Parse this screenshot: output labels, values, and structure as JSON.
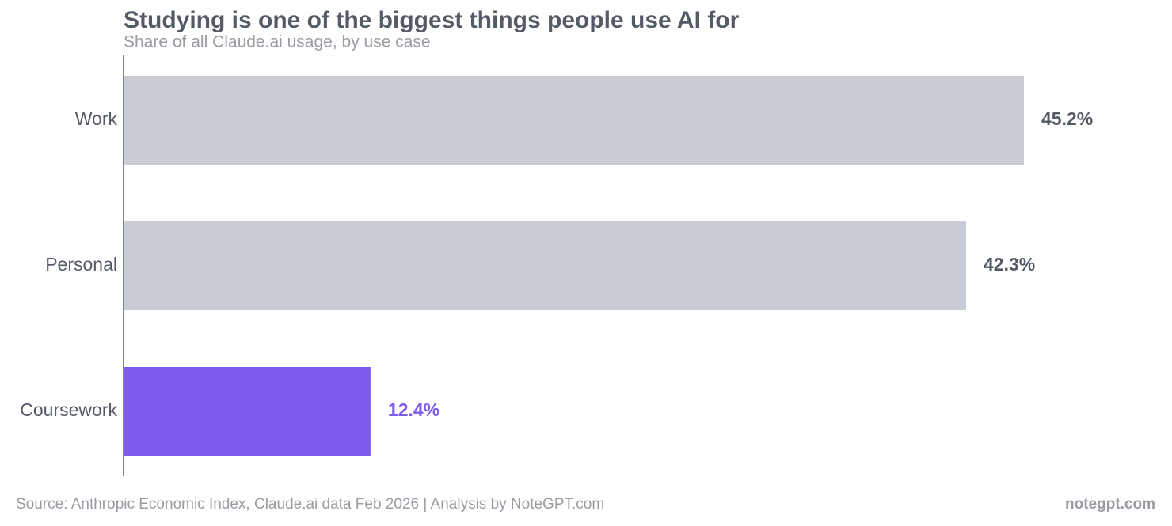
{
  "chart_data": {
    "type": "barh",
    "title": "Studying is one of the biggest things people use AI for",
    "subtitle": "Share of all Claude.ai usage, by use case",
    "categories": [
      "Work",
      "Personal",
      "Coursework"
    ],
    "values": [
      45.2,
      42.3,
      12.4
    ],
    "value_labels": [
      "45.2%",
      "42.3%",
      "12.4%"
    ],
    "colors": [
      "#c9ccd4",
      "#c9ccd4",
      "#7f5af0"
    ],
    "value_label_colors": [
      "#555b66",
      "#555b66",
      "#7f5af0"
    ],
    "xlim": [
      0,
      52
    ],
    "source": "Source: Anthropic Economic Index, Claude.ai data Feb 2026 | Analysis by NoteGPT.com",
    "brand": "notegpt.com"
  }
}
